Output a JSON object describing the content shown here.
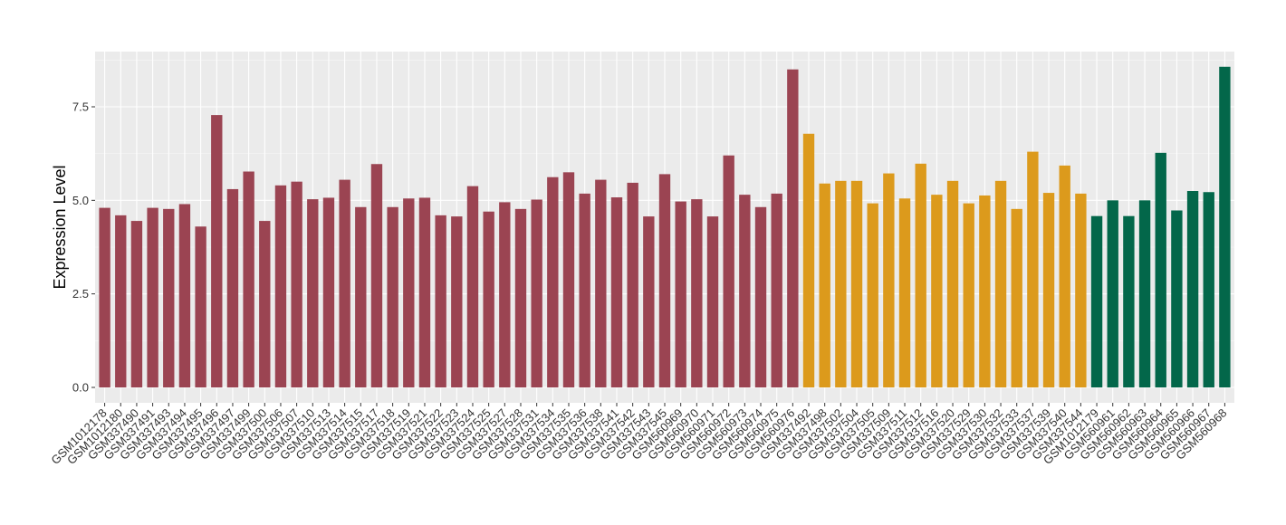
{
  "chart_data": {
    "type": "bar",
    "xlabel": "",
    "ylabel": "Expression Level",
    "ylim": [
      0,
      8.85
    ],
    "yticks": [
      0.0,
      2.5,
      5.0,
      7.5
    ],
    "ytick_labels": [
      "0.0",
      "2.5",
      "5.0",
      "7.5"
    ],
    "grid": true,
    "legend": "none",
    "panel_color": "#ebebeb",
    "series_colors": [
      "#9b4452",
      "#dc9a1c",
      "#03674a"
    ],
    "categories": [
      "GSM1012178",
      "GSM1012180",
      "GSM337490",
      "GSM337491",
      "GSM337493",
      "GSM337494",
      "GSM337495",
      "GSM337496",
      "GSM337497",
      "GSM337499",
      "GSM337500",
      "GSM337506",
      "GSM337507",
      "GSM337510",
      "GSM337513",
      "GSM337514",
      "GSM337515",
      "GSM337517",
      "GSM337518",
      "GSM337519",
      "GSM337521",
      "GSM337522",
      "GSM337523",
      "GSM337524",
      "GSM337525",
      "GSM337527",
      "GSM337528",
      "GSM337531",
      "GSM337534",
      "GSM337535",
      "GSM337536",
      "GSM337538",
      "GSM337541",
      "GSM337542",
      "GSM337543",
      "GSM337545",
      "GSM560969",
      "GSM560970",
      "GSM560971",
      "GSM560972",
      "GSM560973",
      "GSM560974",
      "GSM560975",
      "GSM560976",
      "GSM337492",
      "GSM337498",
      "GSM337502",
      "GSM337504",
      "GSM337505",
      "GSM337509",
      "GSM337511",
      "GSM337512",
      "GSM337516",
      "GSM337520",
      "GSM337529",
      "GSM337530",
      "GSM337532",
      "GSM337533",
      "GSM337537",
      "GSM337539",
      "GSM337540",
      "GSM337544",
      "GSM1012179",
      "GSM560961",
      "GSM560962",
      "GSM560963",
      "GSM560964",
      "GSM560965",
      "GSM560966",
      "GSM560967",
      "GSM560968"
    ],
    "values": [
      4.8,
      4.6,
      4.45,
      4.8,
      4.77,
      4.9,
      4.3,
      7.28,
      5.3,
      5.77,
      4.45,
      5.4,
      5.5,
      5.03,
      5.07,
      5.55,
      4.82,
      5.97,
      4.82,
      5.05,
      5.07,
      4.6,
      4.57,
      5.38,
      4.7,
      4.95,
      4.77,
      5.02,
      5.62,
      5.75,
      5.18,
      5.55,
      5.08,
      5.47,
      4.57,
      5.7,
      4.97,
      5.03,
      4.57,
      6.2,
      5.15,
      4.82,
      5.18,
      8.5,
      6.78,
      5.45,
      5.52,
      5.52,
      4.92,
      5.72,
      5.05,
      5.98,
      5.15,
      5.52,
      4.92,
      5.13,
      5.52,
      4.77,
      6.3,
      5.2,
      5.93,
      5.18,
      4.58,
      5.0,
      4.58,
      5.0,
      6.27,
      4.73,
      5.25,
      5.22,
      8.57
    ],
    "group_sizes": [
      44,
      18,
      9
    ]
  }
}
